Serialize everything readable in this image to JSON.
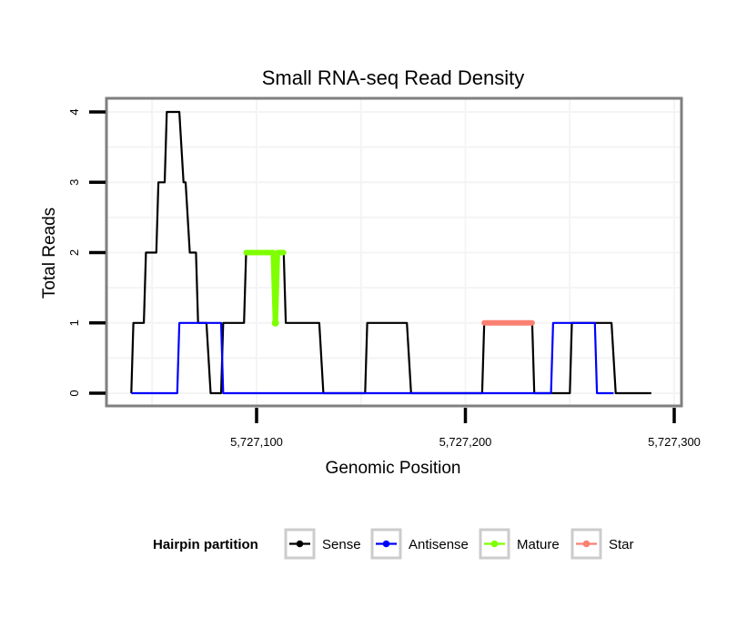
{
  "chart_data": {
    "type": "line",
    "title": "Small RNA-seq Read Density",
    "xlabel": "Genomic Position",
    "ylabel": "Total Reads",
    "xlim": [
      5727024,
      5727303
    ],
    "ylim": [
      -0.18,
      4.18
    ],
    "x_ticks": [
      {
        "value": 5727100,
        "label": "5,727,100"
      },
      {
        "value": 5727200,
        "label": "5,727,200"
      },
      {
        "value": 5727300,
        "label": "5,727,300"
      }
    ],
    "y_ticks": [
      {
        "value": 0,
        "label": "0"
      },
      {
        "value": 1,
        "label": "1"
      },
      {
        "value": 2,
        "label": "2"
      },
      {
        "value": 3,
        "label": "3"
      },
      {
        "value": 4,
        "label": "4"
      }
    ],
    "grid": true,
    "legend": {
      "title": "Hairpin partition",
      "position": "bottom",
      "entries": [
        "Sense",
        "Antisense",
        "Mature",
        "Star"
      ]
    },
    "series": [
      {
        "name": "Sense",
        "color": "#000000",
        "x": [
          5727040,
          5727041,
          5727046,
          5727047,
          5727052,
          5727053,
          5727056,
          5727057,
          5727063,
          5727065,
          5727066,
          5727068,
          5727071,
          5727072,
          5727076,
          5727078,
          5727083,
          5727084,
          5727094,
          5727095,
          5727108,
          5727109,
          5727110,
          5727113,
          5727114,
          5727130,
          5727132,
          5727152,
          5727153,
          5727172,
          5727174,
          5727208,
          5727209,
          5727232,
          5727233,
          5727250,
          5727251,
          5727270,
          5727272,
          5727289
        ],
        "y": [
          0,
          1,
          1,
          2,
          2,
          3,
          3,
          4,
          4,
          3,
          3,
          2,
          2,
          1,
          1,
          0,
          0,
          1,
          1,
          2,
          2,
          1,
          2,
          2,
          1,
          1,
          0,
          0,
          1,
          1,
          0,
          0,
          1,
          1,
          0,
          0,
          1,
          1,
          0,
          0
        ]
      },
      {
        "name": "Antisense",
        "color": "#0000ff",
        "x": [
          5727040,
          5727062,
          5727063,
          5727083,
          5727084,
          5727241,
          5727242,
          5727262,
          5727263,
          5727271
        ],
        "y": [
          0,
          0,
          1,
          1,
          0,
          0,
          1,
          1,
          0,
          0
        ]
      },
      {
        "name": "Mature",
        "color": "#7fff00",
        "x": [
          5727095,
          5727108,
          5727109,
          5727110,
          5727113
        ],
        "y": [
          2,
          2,
          1,
          2,
          2
        ]
      },
      {
        "name": "Star",
        "color": "#fa8072",
        "x": [
          5727209,
          5727232
        ],
        "y": [
          1,
          1
        ]
      }
    ]
  }
}
